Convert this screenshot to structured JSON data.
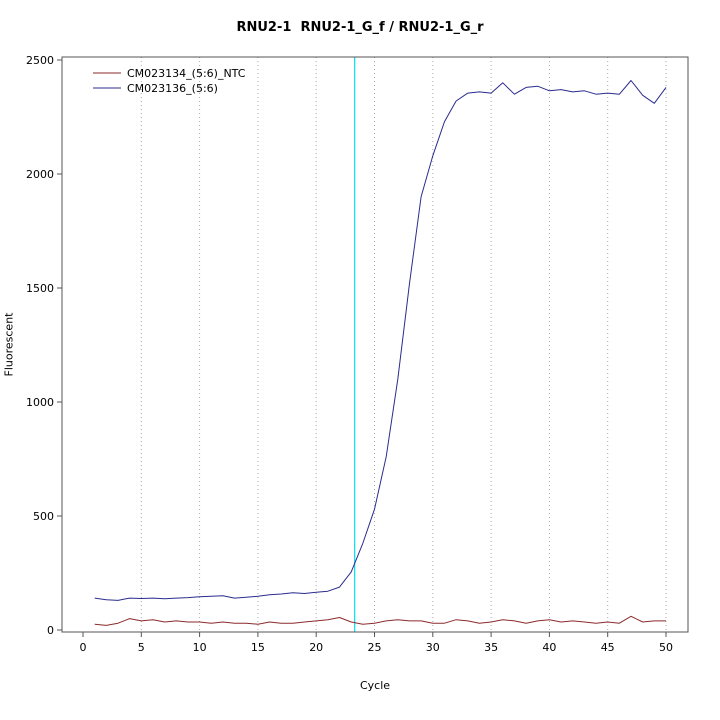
{
  "title": "RNU2-1  RNU2-1_G_f / RNU2-1_G_r",
  "chart_data": {
    "type": "line",
    "title": "RNU2-1  RNU2-1_G_f / RNU2-1_G_r",
    "xlabel": "Cycle",
    "ylabel": "Fluorescent",
    "xlim": [
      0,
      50
    ],
    "ylim": [
      0,
      2500
    ],
    "x_ticks": [
      0,
      5,
      10,
      15,
      20,
      25,
      30,
      35,
      40,
      45,
      50
    ],
    "y_ticks": [
      0,
      500,
      1000,
      1500,
      2000,
      2500
    ],
    "grid": "vertical-dotted",
    "legend_position": "top-left",
    "threshold_cycle_line": {
      "x": 23.3,
      "color": "#00dfe8"
    },
    "threshold_fluorescence_line": {
      "y": 0,
      "color": "#8b0000"
    },
    "cycles": [
      1,
      2,
      3,
      4,
      5,
      6,
      7,
      8,
      9,
      10,
      11,
      12,
      13,
      14,
      15,
      16,
      17,
      18,
      19,
      20,
      21,
      22,
      23,
      24,
      25,
      26,
      27,
      28,
      29,
      30,
      31,
      32,
      33,
      34,
      35,
      36,
      37,
      38,
      39,
      40,
      41,
      42,
      43,
      44,
      45,
      46,
      47,
      48,
      49,
      50
    ],
    "series": [
      {
        "name": "CM023134_(5:6)_NTC",
        "color": "#8b2b2b",
        "values": [
          25,
          20,
          30,
          50,
          40,
          45,
          35,
          40,
          35,
          35,
          30,
          35,
          30,
          30,
          25,
          35,
          30,
          30,
          35,
          40,
          45,
          55,
          35,
          25,
          30,
          40,
          45,
          40,
          40,
          30,
          30,
          45,
          40,
          30,
          35,
          45,
          40,
          30,
          40,
          45,
          35,
          40,
          35,
          30,
          35,
          30,
          60,
          35,
          40,
          40
        ]
      },
      {
        "name": "CM023136_(5:6)",
        "color": "#2b2b8f",
        "values": [
          140,
          133,
          130,
          140,
          138,
          140,
          137,
          140,
          142,
          146,
          148,
          150,
          140,
          144,
          148,
          155,
          158,
          163,
          160,
          166,
          170,
          188,
          255,
          380,
          530,
          760,
          1100,
          1520,
          1900,
          2080,
          2230,
          2320,
          2355,
          2360,
          2355,
          2400,
          2350,
          2380,
          2385,
          2365,
          2370,
          2360,
          2365,
          2350,
          2355,
          2350,
          2410,
          2345,
          2310,
          2380
        ]
      }
    ]
  }
}
